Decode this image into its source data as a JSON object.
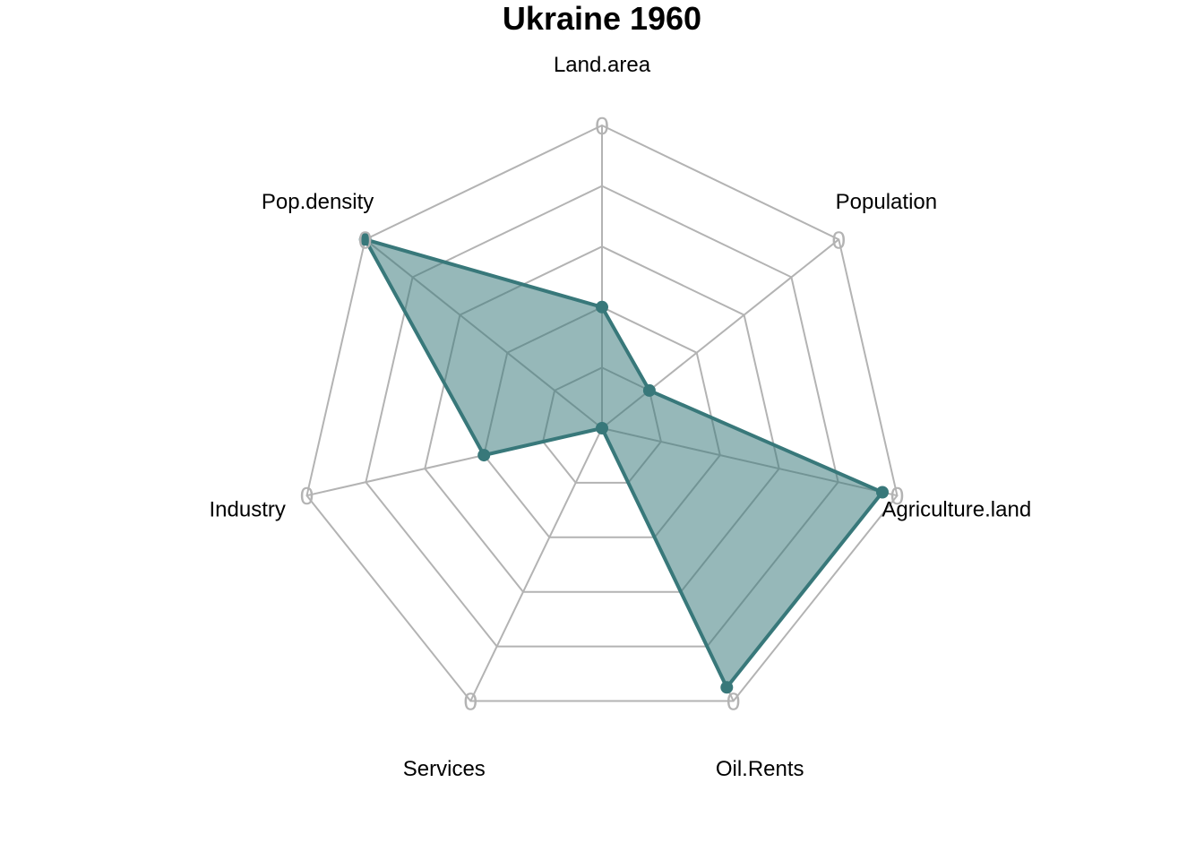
{
  "chart_data": {
    "type": "radar",
    "title": "Ukraine 1960",
    "axes": [
      "Land.area",
      "Population",
      "Agriculture.land",
      "Oil.Rents",
      "Services",
      "Industry",
      "Pop.density"
    ],
    "grid_levels": 5,
    "outer_tick_label": "0",
    "series": [
      {
        "values": [
          0.4,
          0.2,
          0.95,
          0.95,
          0.0,
          0.4,
          1.0
        ]
      }
    ],
    "colors": {
      "series": "#38787a",
      "fill": "#38787a",
      "grid": "#b3b3b3"
    }
  }
}
